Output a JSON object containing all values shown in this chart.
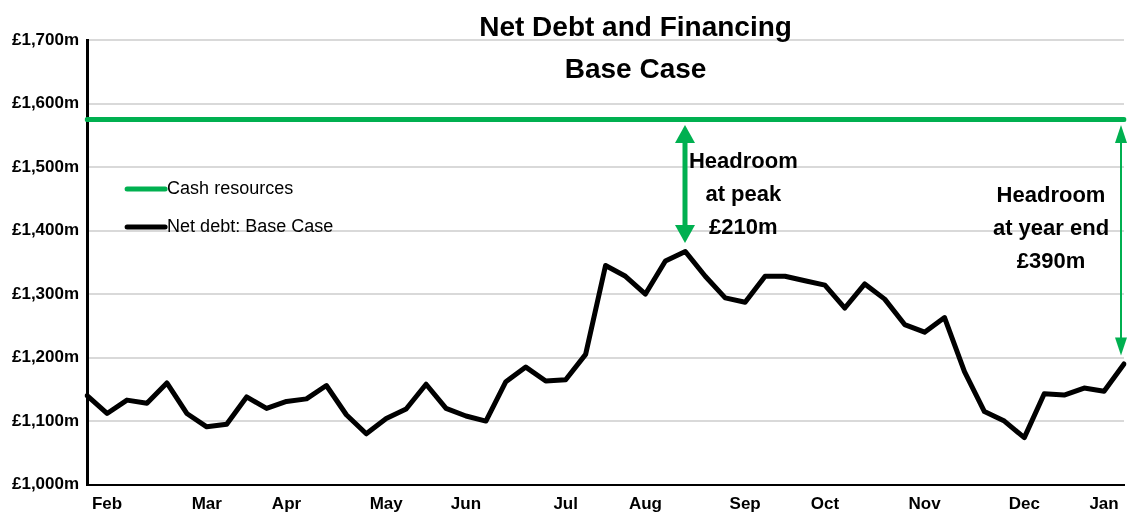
{
  "chart_data": {
    "type": "line",
    "title": "Net Debt and Financing",
    "subtitle": "Base Case",
    "categories": [
      null,
      "Feb",
      null,
      null,
      null,
      null,
      "Mar",
      null,
      null,
      null,
      "Apr",
      null,
      null,
      null,
      null,
      "May",
      null,
      null,
      null,
      "Jun",
      null,
      null,
      null,
      null,
      "Jul",
      null,
      null,
      null,
      "Aug",
      null,
      null,
      null,
      null,
      "Sep",
      null,
      null,
      null,
      "Oct",
      null,
      null,
      null,
      null,
      "Nov",
      null,
      null,
      null,
      null,
      "Dec",
      null,
      null,
      null,
      "Jan",
      null
    ],
    "series": [
      {
        "name": "Cash resources",
        "color": "#00b050",
        "values": [
          1575,
          1575,
          1575,
          1575,
          1575,
          1575,
          1575,
          1575,
          1575,
          1575,
          1575,
          1575,
          1575,
          1575,
          1575,
          1575,
          1575,
          1575,
          1575,
          1575,
          1575,
          1575,
          1575,
          1575,
          1575,
          1575,
          1575,
          1575,
          1575,
          1575,
          1575,
          1575,
          1575,
          1575,
          1575,
          1575,
          1575,
          1575,
          1575,
          1575,
          1575,
          1575,
          1575,
          1575,
          1575,
          1575,
          1575,
          1575,
          1575,
          1575,
          1575,
          1575,
          1575
        ]
      },
      {
        "name": "Net debt: Base Case",
        "color": "#000000",
        "values": [
          1140,
          1112,
          1133,
          1128,
          1160,
          1112,
          1091,
          1095,
          1138,
          1120,
          1131,
          1135,
          1156,
          1110,
          1080,
          1104,
          1119,
          1158,
          1120,
          1108,
          1100,
          1162,
          1185,
          1163,
          1165,
          1205,
          1345,
          1328,
          1300,
          1352,
          1367,
          1328,
          1294,
          1287,
          1328,
          1328,
          1321,
          1314,
          1278,
          1316,
          1292,
          1252,
          1240,
          1263,
          1178,
          1115,
          1100,
          1074,
          1143,
          1141,
          1152,
          1147,
          1190
        ]
      }
    ],
    "ylim": [
      1000,
      1700
    ],
    "yticks": [
      {
        "value": 1000,
        "label": "£1,000m"
      },
      {
        "value": 1100,
        "label": "£1,100m"
      },
      {
        "value": 1200,
        "label": "£1,200m"
      },
      {
        "value": 1300,
        "label": "£1,300m"
      },
      {
        "value": 1400,
        "label": "£1,400m"
      },
      {
        "value": 1500,
        "label": "£1,500m"
      },
      {
        "value": 1600,
        "label": "£1,600m"
      },
      {
        "value": 1700,
        "label": "£1,700m"
      }
    ],
    "grid": "y",
    "legend": "top left",
    "marker": "none",
    "line_style": "solid",
    "annotations": [
      "Headroom\nat peak\n£210m",
      "Headroom\nat year end\n£390m"
    ]
  }
}
